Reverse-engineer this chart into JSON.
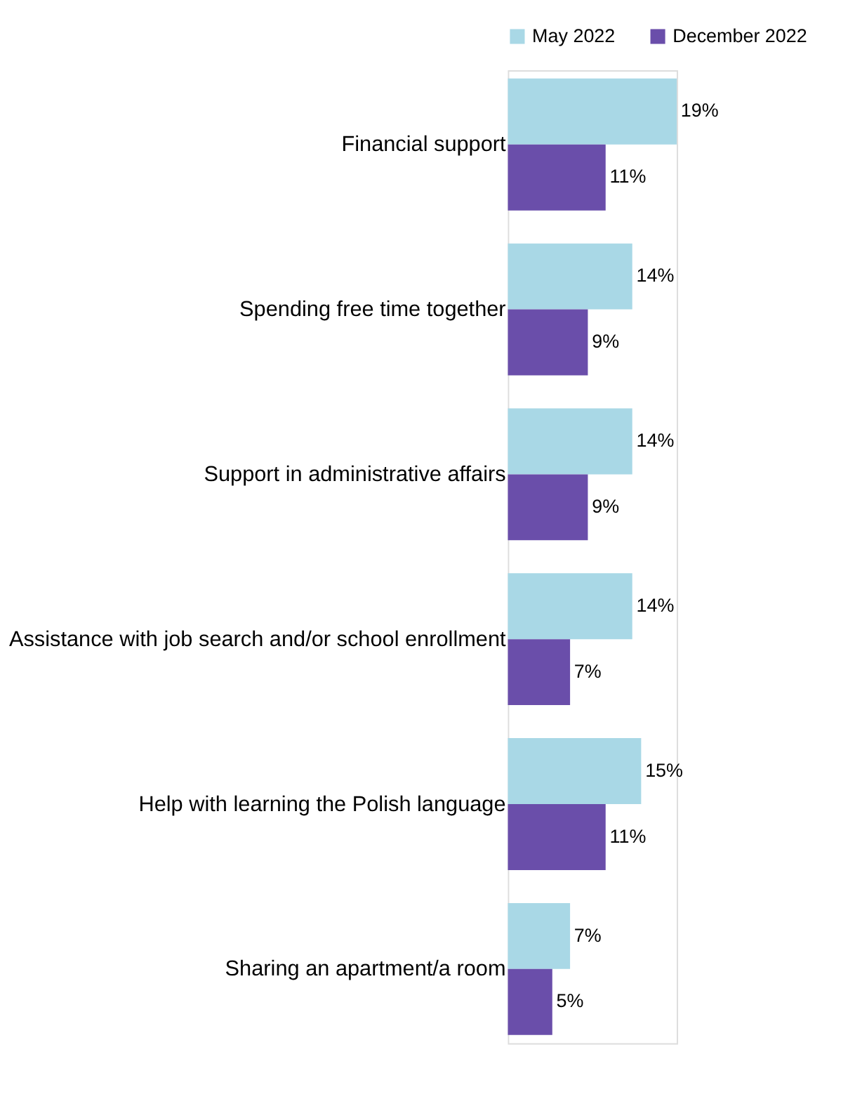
{
  "chart_data": {
    "type": "bar",
    "orientation": "horizontal",
    "legend": "top right",
    "categories": [
      "Financial support",
      "Spending free time together",
      "Support in administrative affairs",
      "Assistance with job search and/or school enrollment",
      "Help with learning the Polish language",
      "Sharing an apartment/a room"
    ],
    "series": [
      {
        "name": "May 2022",
        "color": "#a9d8e6",
        "values": [
          19,
          14,
          14,
          14,
          15,
          7
        ],
        "value_labels": [
          "19%",
          "14%",
          "14%",
          "14%",
          "15%",
          "7%"
        ]
      },
      {
        "name": "December 2022",
        "color": "#6a4eaa",
        "values": [
          11,
          9,
          9,
          7,
          11,
          5
        ],
        "value_labels": [
          "11%",
          "9%",
          "9%",
          "7%",
          "11%",
          "5%"
        ]
      }
    ]
  }
}
